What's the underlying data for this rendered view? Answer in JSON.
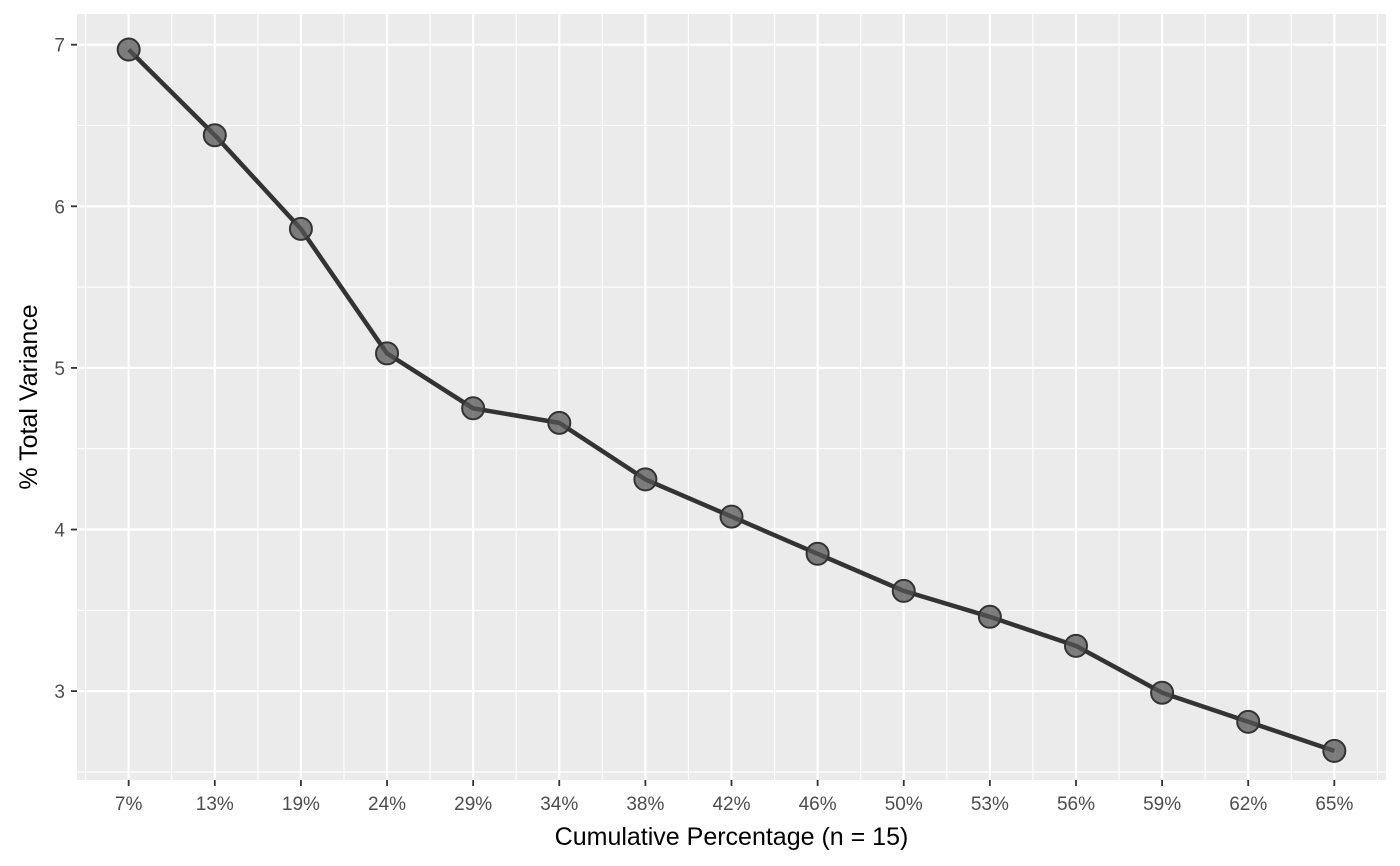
{
  "chart_data": {
    "type": "line",
    "title": "",
    "xlabel": "Cumulative Percentage (n = 15)",
    "ylabel": "% Total Variance",
    "categories": [
      "7%",
      "13%",
      "19%",
      "24%",
      "29%",
      "34%",
      "38%",
      "42%",
      "46%",
      "50%",
      "53%",
      "56%",
      "59%",
      "62%",
      "65%"
    ],
    "series": [
      {
        "values": [
          6.97,
          6.44,
          5.86,
          5.09,
          4.75,
          4.66,
          4.31,
          4.08,
          3.85,
          3.62,
          3.46,
          3.28,
          2.99,
          2.81,
          2.63
        ]
      }
    ],
    "yticks": [
      3,
      4,
      5,
      6,
      7
    ],
    "ylim": [
      2.45,
      7.19
    ],
    "grid": true,
    "legend": "none",
    "colors": {
      "panel": "#ebebeb",
      "grid": "#ffffff",
      "line": "#333333",
      "point_fill": "#555555"
    }
  }
}
